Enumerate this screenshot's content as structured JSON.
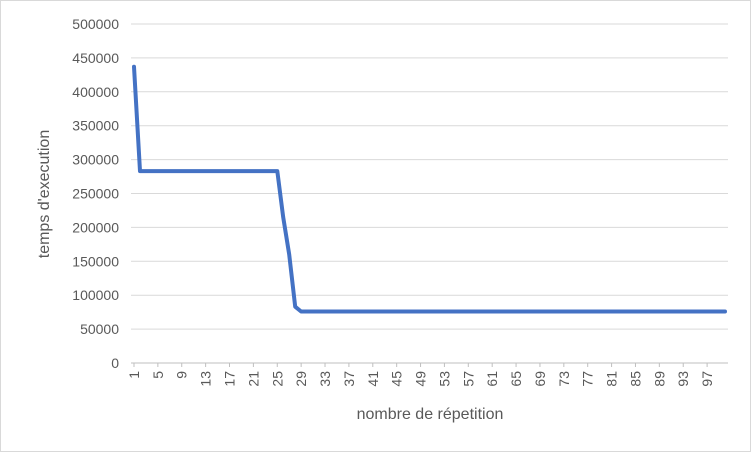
{
  "chart_data": {
    "type": "line",
    "title": "",
    "xlabel": "nombre de répetition",
    "ylabel": "temps d'execution",
    "ylim": [
      0,
      500000
    ],
    "yticks": [
      0,
      50000,
      100000,
      150000,
      200000,
      250000,
      300000,
      350000,
      400000,
      450000,
      500000
    ],
    "ytick_labels": [
      "0",
      "50000",
      "100000",
      "150000",
      "200000",
      "250000",
      "300000",
      "350000",
      "400000",
      "450000",
      "500000"
    ],
    "xlim": [
      1,
      100
    ],
    "xtick_labels": [
      "1",
      "5",
      "9",
      "13",
      "17",
      "21",
      "25",
      "29",
      "33",
      "37",
      "41",
      "45",
      "49",
      "53",
      "57",
      "61",
      "65",
      "69",
      "73",
      "77",
      "81",
      "85",
      "89",
      "93",
      "97"
    ],
    "grid": true,
    "legend": "none",
    "series": [
      {
        "color": "#4472c4",
        "x": [
          1,
          2,
          3,
          25,
          26,
          27,
          28,
          29,
          100
        ],
        "y": [
          437000,
          283000,
          283000,
          283000,
          215000,
          160000,
          83000,
          76000,
          76000
        ]
      }
    ]
  },
  "colors": {
    "gridline": "#d9d9d9",
    "axis_line": "#bfbfbf",
    "text": "#595959"
  }
}
